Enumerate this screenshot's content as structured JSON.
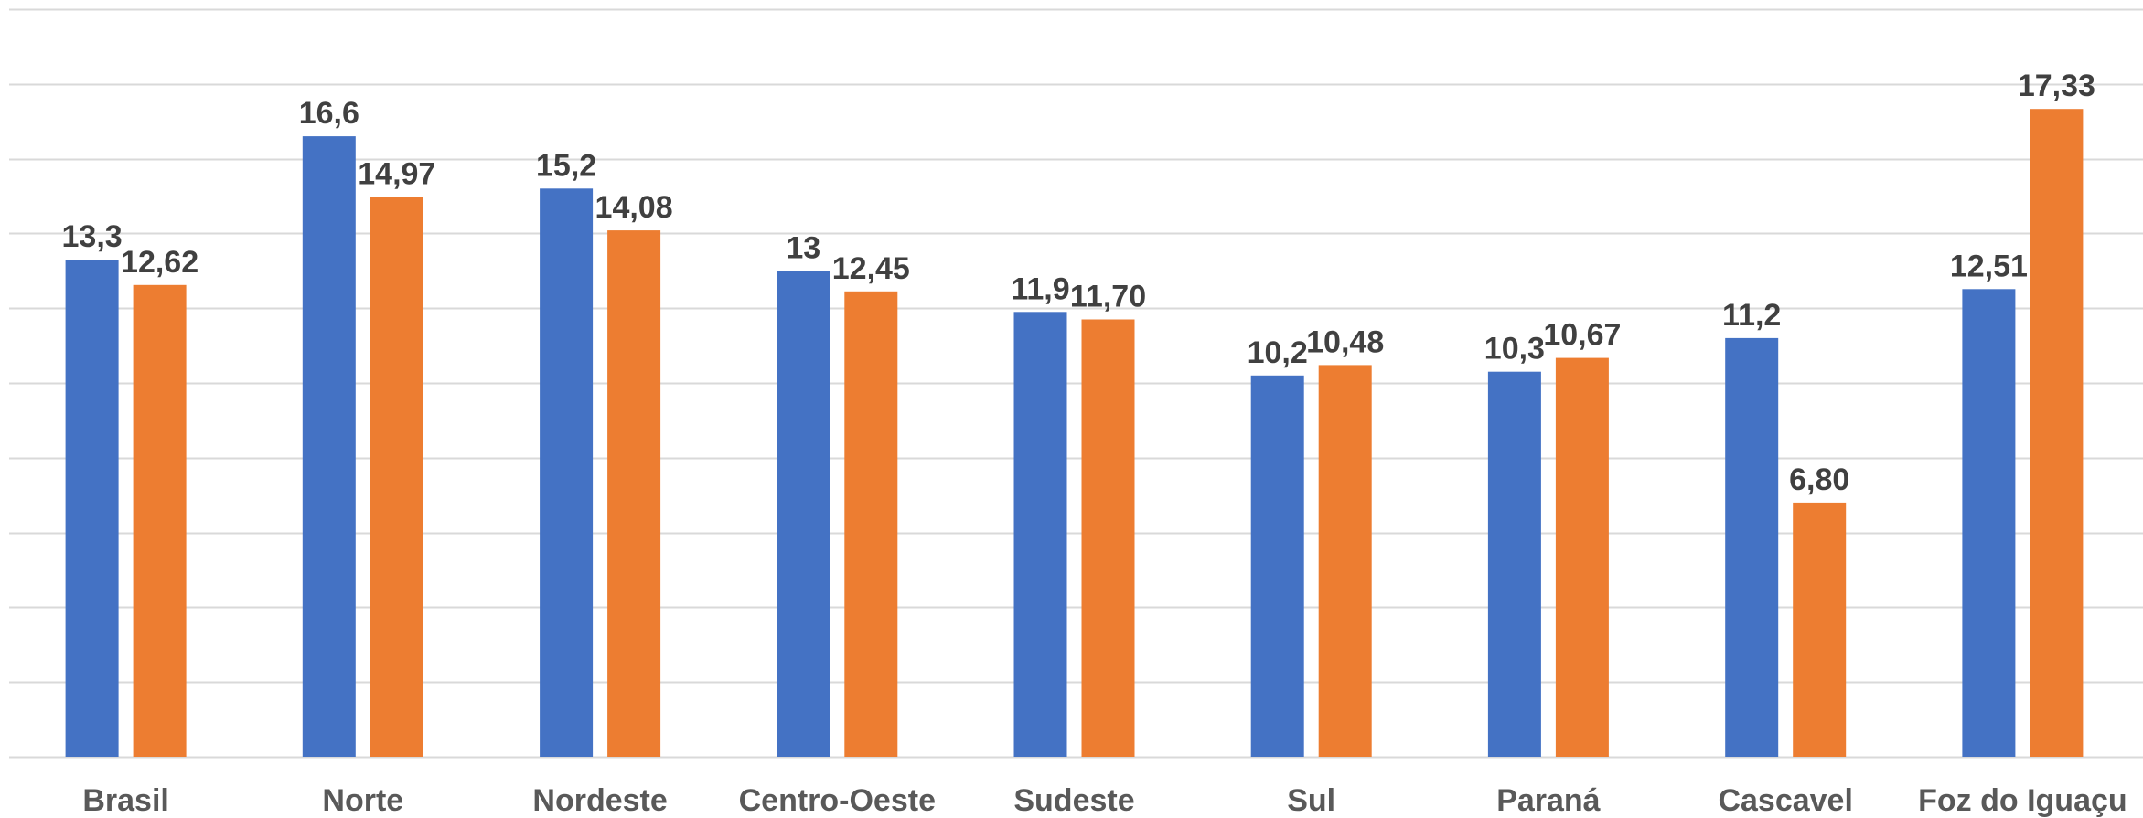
{
  "chart_data": {
    "type": "bar",
    "categories": [
      "Brasil",
      "Norte",
      "Nordeste",
      "Centro-Oeste",
      "Sudeste",
      "Sul",
      "Paraná",
      "Cascavel",
      "Foz do Iguaçu"
    ],
    "series": [
      {
        "values": [
          13.3,
          16.6,
          15.2,
          13,
          11.9,
          10.2,
          10.3,
          11.2,
          12.51
        ],
        "labels": [
          "13,3",
          "16,6",
          "15,2",
          "13",
          "11,9",
          "10,2",
          "10,3",
          "11,2",
          "12,51"
        ],
        "color": "#4472c4"
      },
      {
        "values": [
          12.62,
          14.97,
          14.08,
          12.45,
          11.7,
          10.48,
          10.67,
          6.8,
          17.33
        ],
        "labels": [
          "12,62",
          "14,97",
          "14,08",
          "12,45",
          "11,70",
          "10,48",
          "10,67",
          "6,80",
          "17,33"
        ],
        "color": "#ed7d31"
      }
    ],
    "ylim": [
      0,
      20
    ],
    "grid": true,
    "gridline_step": 2
  }
}
